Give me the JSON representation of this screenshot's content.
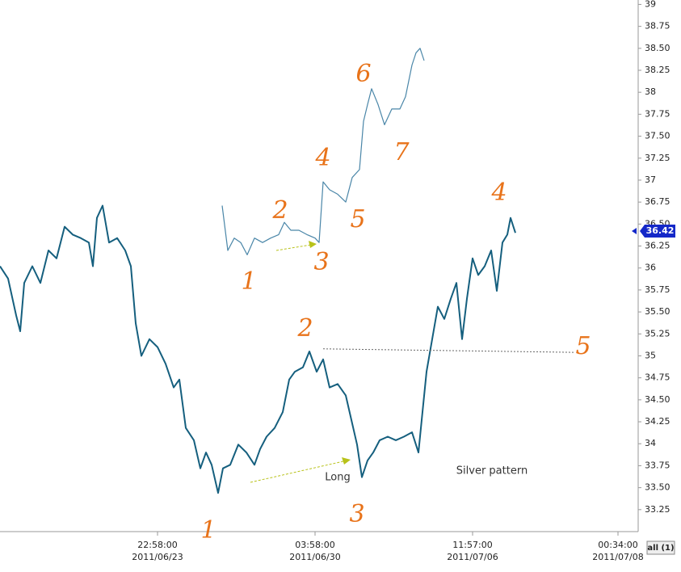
{
  "chart_data": {
    "type": "line",
    "ylim": [
      33,
      39.05
    ],
    "yticks": [
      39,
      38.75,
      {
        "value": 38.5,
        "label": "38.50"
      },
      38.25,
      38,
      37.75,
      {
        "value": 37.5,
        "label": "37.50"
      },
      37.25,
      37,
      36.75,
      {
        "value": 36.5,
        "label": "36.50"
      },
      36.25,
      36,
      35.75,
      {
        "value": 35.5,
        "label": "35.50"
      },
      35.25,
      35,
      34.75,
      {
        "value": 34.5,
        "label": "34.50"
      },
      34.25,
      34,
      33.75,
      {
        "value": 33.5,
        "label": "33.50"
      },
      33.25
    ],
    "xlim": [
      0,
      790
    ],
    "xticks": [
      {
        "value": 195,
        "label": "22:58:00",
        "date": "2011/06/23"
      },
      {
        "value": 390,
        "label": "03:58:00",
        "date": "2011/06/30"
      },
      {
        "value": 585,
        "label": "11:57:00",
        "date": "2011/07/06"
      },
      {
        "value": 765,
        "label": "00:34:00",
        "date": "2011/07/08"
      }
    ],
    "series": [
      {
        "color": "#155f7e",
        "x": [
          0,
          10,
          20,
          25,
          30,
          40,
          50,
          60,
          70,
          80,
          90,
          100,
          110,
          115,
          120,
          127,
          135,
          145,
          155,
          162,
          168,
          175,
          185,
          195,
          205,
          215,
          222,
          230,
          240,
          248,
          255,
          262,
          270,
          276,
          285,
          295,
          305,
          315,
          322,
          330,
          340,
          350,
          358,
          365,
          375,
          383,
          392,
          400,
          408,
          418,
          428,
          435,
          442,
          448,
          455,
          462,
          470,
          480,
          490,
          500,
          510,
          518,
          522,
          528,
          535,
          542,
          550,
          558,
          565,
          572,
          578,
          585,
          592,
          600,
          608,
          615,
          622,
          628,
          632,
          638
        ],
        "values": [
          36.02,
          35.88,
          35.46,
          35.28,
          35.83,
          36.02,
          35.83,
          36.2,
          36.11,
          36.47,
          36.38,
          36.34,
          36.29,
          36.02,
          36.57,
          36.71,
          36.29,
          36.34,
          36.2,
          36.02,
          35.37,
          35.0,
          35.19,
          35.1,
          34.91,
          34.64,
          34.73,
          34.18,
          34.04,
          33.72,
          33.9,
          33.76,
          33.44,
          33.72,
          33.76,
          33.99,
          33.9,
          33.76,
          33.94,
          34.08,
          34.18,
          34.36,
          34.73,
          34.82,
          34.87,
          35.05,
          34.82,
          34.96,
          34.64,
          34.68,
          34.55,
          34.27,
          33.99,
          33.62,
          33.81,
          33.9,
          34.04,
          34.08,
          34.04,
          34.08,
          34.13,
          33.9,
          34.27,
          34.82,
          35.19,
          35.56,
          35.42,
          35.65,
          35.83,
          35.19,
          35.65,
          36.11,
          35.92,
          36.02,
          36.2,
          35.74,
          36.29,
          36.38,
          36.57,
          36.4
        ]
      },
      {
        "color": "#4a86a8",
        "x": [
          275,
          282,
          290,
          298,
          306,
          315,
          325,
          335,
          345,
          352,
          360,
          370,
          380,
          390,
          395,
          400,
          408,
          418,
          428,
          436,
          445,
          450,
          455,
          460,
          468,
          476,
          485,
          495,
          502,
          510,
          515,
          520,
          525
        ],
        "values": [
          36.71,
          36.2,
          36.34,
          36.29,
          36.15,
          36.34,
          36.29,
          36.34,
          36.38,
          36.52,
          36.43,
          36.43,
          36.38,
          36.34,
          36.29,
          36.98,
          36.89,
          36.84,
          36.75,
          37.03,
          37.12,
          37.67,
          37.86,
          38.04,
          37.86,
          37.63,
          37.81,
          37.81,
          37.95,
          38.31,
          38.45,
          38.5,
          38.36
        ]
      }
    ],
    "level_line": {
      "x": [
        400,
        710
      ],
      "values": [
        35.08,
        35.04
      ]
    },
    "current_price": 36.42,
    "annotations": [
      "1",
      "2",
      "3",
      "4",
      "5",
      "6",
      "7",
      "1",
      "2",
      "3",
      "4",
      "5",
      "Long",
      "Silver pattern"
    ],
    "button": "all (1)"
  }
}
